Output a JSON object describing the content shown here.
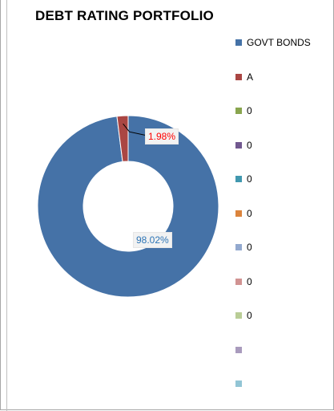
{
  "chart_data": {
    "type": "pie",
    "title": "DEBT RATING PORTFOLIO",
    "slices": [
      {
        "name": "GOVT BONDS",
        "value": 98.02,
        "label": "98.02%",
        "color": "#4572a7",
        "label_color": "#2e75b6"
      },
      {
        "name": "A",
        "value": 1.98,
        "label": "1.98%",
        "color": "#aa4643",
        "label_color": "#ff0000"
      }
    ],
    "legend": [
      {
        "label": "GOVT BONDS",
        "color": "#4572a7"
      },
      {
        "label": "A",
        "color": "#aa4643"
      },
      {
        "label": "0",
        "color": "#89a54e"
      },
      {
        "label": "0",
        "color": "#71588f"
      },
      {
        "label": "0",
        "color": "#4198af"
      },
      {
        "label": "0",
        "color": "#db843d"
      },
      {
        "label": "0",
        "color": "#93a9cf"
      },
      {
        "label": "0",
        "color": "#d19392"
      },
      {
        "label": "0",
        "color": "#b9cd96"
      },
      {
        "label": "",
        "color": "#a99bbd"
      },
      {
        "label": "",
        "color": "#92c5d5"
      }
    ],
    "donut": true,
    "legend_position": "right"
  }
}
